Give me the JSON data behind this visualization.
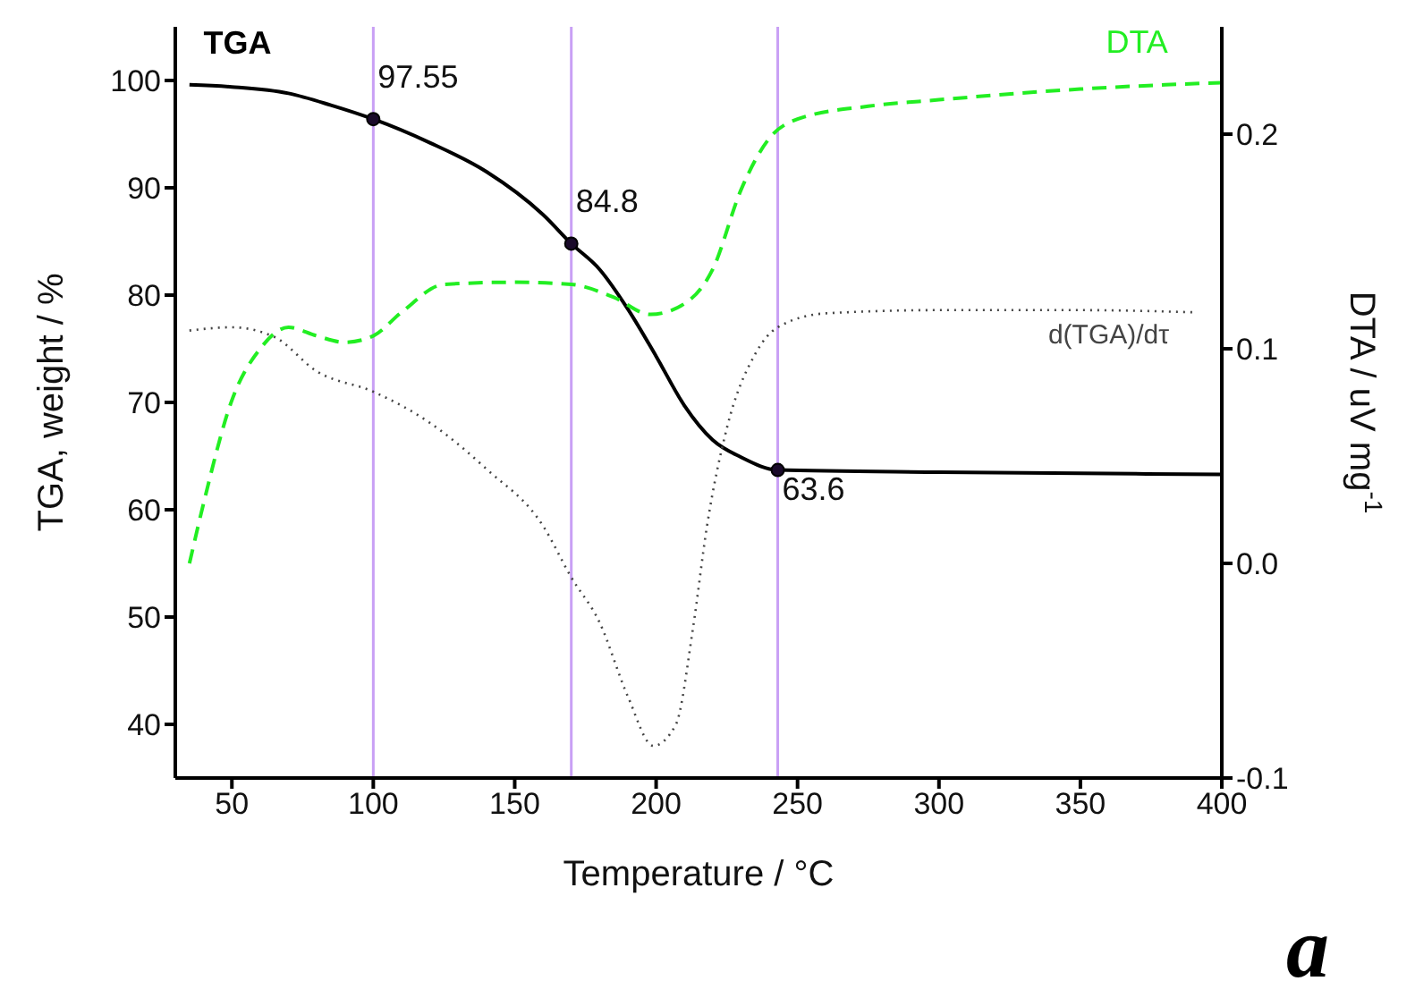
{
  "chart_data": {
    "type": "line",
    "xlabel": "Temperature / °C",
    "ylabel": "TGA, weight / %",
    "y2label": "DTA / uV mg$^{-1}$",
    "xlim": [
      30,
      400
    ],
    "xticks": [
      50,
      100,
      150,
      200,
      250,
      300,
      350,
      400
    ],
    "ylim": [
      35,
      105
    ],
    "yticks": [
      40,
      50,
      60,
      70,
      80,
      90,
      100
    ],
    "y2lim": [
      -0.1,
      0.25
    ],
    "y2ticks": [
      {
        "value": -0.1,
        "label": "-0.1"
      },
      {
        "value": 0,
        "label": "0.0"
      },
      {
        "value": 0.1,
        "label": "0.1"
      },
      {
        "value": 0.2,
        "label": "0.2"
      }
    ],
    "marker": "none",
    "series": [
      {
        "name": "TGA",
        "color": "#000000",
        "line_style": "solid",
        "x": [
          35,
          50,
          70,
          85,
          100,
          120,
          140,
          160,
          170,
          180,
          190,
          200,
          210,
          220,
          230,
          243,
          300,
          400
        ],
        "values": [
          99.6,
          99.4,
          98.8,
          97.7,
          96.4,
          94.2,
          91.5,
          87.5,
          84.8,
          82.4,
          78.7,
          74.3,
          69.7,
          66.5,
          64.9,
          63.7,
          63.5,
          63.3
        ]
      },
      {
        "name": "DTA",
        "color": "#22ee22",
        "line_style": "dashed",
        "axis": "y2",
        "x": [
          35,
          40,
          50,
          60,
          70,
          80,
          90,
          100,
          110,
          125,
          150,
          170,
          185,
          198,
          210,
          220,
          230,
          240,
          250,
          275,
          300,
          350,
          380,
          400
        ],
        "values": [
          0.0,
          0.028,
          0.076,
          0.1,
          0.11,
          0.106,
          0.103,
          0.106,
          0.117,
          0.13,
          0.131,
          0.13,
          0.124,
          0.116,
          0.121,
          0.137,
          0.174,
          0.198,
          0.207,
          0.213,
          0.216,
          0.221,
          0.223,
          0.224
        ]
      },
      {
        "name": "d(TGA)/dτ",
        "color": "#444444",
        "line_style": "dotted",
        "x": [
          35,
          50,
          65,
          80,
          100,
          120,
          140,
          160,
          170,
          180,
          190,
          199,
          207,
          213,
          218,
          225,
          235,
          243,
          260,
          300,
          350,
          390
        ],
        "values": [
          76.7,
          77.0,
          76.1,
          72.9,
          71.0,
          68.1,
          63.8,
          58.5,
          53.7,
          49.5,
          42.6,
          38.0,
          40.0,
          48.9,
          58.5,
          67.6,
          74.5,
          77.0,
          78.3,
          78.6,
          78.6,
          78.4
        ]
      }
    ],
    "ref_lines": [
      {
        "axis": "x",
        "value": 100,
        "color": "#c9a0f5"
      },
      {
        "axis": "x",
        "value": 170,
        "color": "#c9a0f5"
      },
      {
        "axis": "x",
        "value": 243,
        "color": "#c9a0f5"
      }
    ],
    "annotations": [
      {
        "text": "97.55",
        "x": 100,
        "y": 96.4
      },
      {
        "text": "84.8",
        "x": 170,
        "y": 84.8
      },
      {
        "text": "63.6",
        "x": 243,
        "y": 63.7
      },
      "a"
    ]
  }
}
